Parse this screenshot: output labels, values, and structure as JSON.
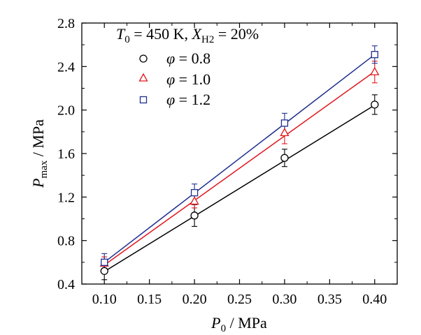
{
  "chart_data": {
    "type": "scatter",
    "annotation": {
      "t_symbol": "T",
      "t_sub": "0",
      "t_value": " = 450 K, ",
      "x_symbol": "X",
      "x_sub": "H2",
      "x_value": " = 20%"
    },
    "xlabel": {
      "symbol": "P",
      "sub": "0",
      "unit": " / MPa"
    },
    "ylabel": {
      "symbol": "P",
      "sub": "max",
      "unit": " / MPa"
    },
    "xlim": [
      0.075,
      0.425
    ],
    "ylim": [
      0.4,
      2.8
    ],
    "xticks": [
      "0.10",
      "0.15",
      "0.20",
      "0.25",
      "0.30",
      "0.35",
      "0.40"
    ],
    "yticks": [
      "0.4",
      "0.8",
      "1.2",
      "1.6",
      "2.0",
      "2.4",
      "2.8"
    ],
    "grid": false,
    "legend_position": "top-left",
    "series": [
      {
        "name": "φ = 0.8",
        "legend_symbol": "φ",
        "legend_value": " = 0.8",
        "marker": "circle",
        "color": "#000000",
        "x": [
          0.1,
          0.2,
          0.3,
          0.4
        ],
        "y": [
          0.52,
          1.03,
          1.56,
          2.05
        ],
        "err": [
          0.08,
          0.1,
          0.08,
          0.09
        ],
        "fit": {
          "x": [
            0.1,
            0.4
          ],
          "y": [
            0.515,
            2.045
          ]
        }
      },
      {
        "name": "φ = 1.0",
        "legend_symbol": "φ",
        "legend_value": " = 1.0",
        "marker": "triangle",
        "color": "#e0181f",
        "x": [
          0.1,
          0.2,
          0.3,
          0.4
        ],
        "y": [
          0.59,
          1.16,
          1.79,
          2.35
        ],
        "err": [
          0.06,
          0.06,
          0.1,
          0.1
        ],
        "fit": {
          "x": [
            0.1,
            0.4
          ],
          "y": [
            0.575,
            2.355
          ]
        }
      },
      {
        "name": "φ = 1.2",
        "legend_symbol": "φ",
        "legend_value": " = 1.2",
        "marker": "square",
        "color": "#1f2f8f",
        "x": [
          0.1,
          0.2,
          0.3,
          0.4
        ],
        "y": [
          0.6,
          1.24,
          1.88,
          2.51
        ],
        "err": [
          0.08,
          0.08,
          0.09,
          0.08
        ],
        "fit": {
          "x": [
            0.1,
            0.4
          ],
          "y": [
            0.6,
            2.51
          ]
        }
      }
    ]
  }
}
